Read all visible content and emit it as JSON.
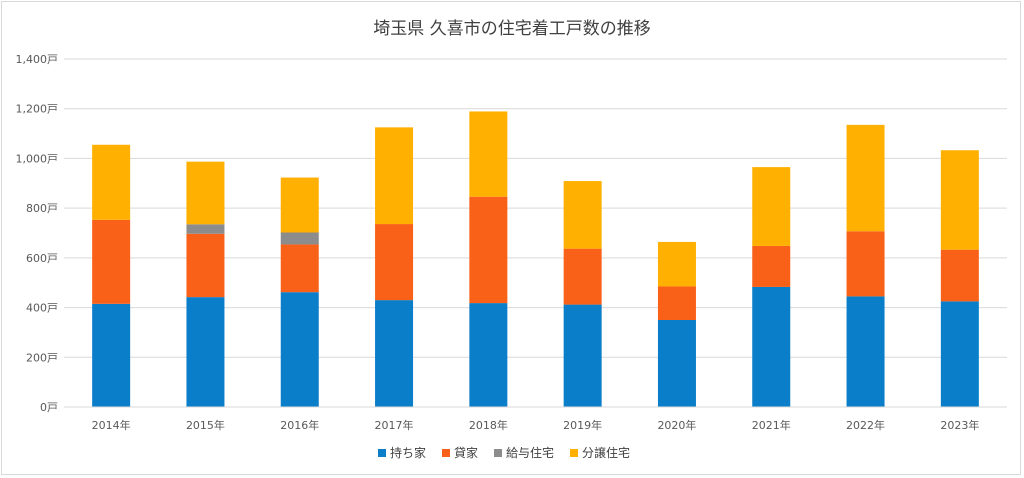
{
  "chart_data": {
    "type": "bar",
    "stacked": true,
    "title": "埼玉県 久喜市の住宅着工戸数の推移",
    "categories": [
      "2014年",
      "2015年",
      "2016年",
      "2017年",
      "2018年",
      "2019年",
      "2020年",
      "2021年",
      "2022年",
      "2023年"
    ],
    "series": [
      {
        "name": "持ち家",
        "color": "#0a7ec8",
        "values": [
          415,
          442,
          462,
          430,
          418,
          412,
          350,
          483,
          445,
          425
        ]
      },
      {
        "name": "貸家",
        "color": "#fa6118",
        "values": [
          338,
          255,
          192,
          306,
          428,
          225,
          135,
          165,
          262,
          208
        ]
      },
      {
        "name": "給与住宅",
        "color": "#8c8c8c",
        "values": [
          0,
          38,
          48,
          0,
          0,
          0,
          0,
          0,
          0,
          0
        ]
      },
      {
        "name": "分譲住宅",
        "color": "#ffb000",
        "values": [
          302,
          252,
          221,
          389,
          343,
          272,
          179,
          317,
          428,
          400
        ]
      }
    ],
    "y_ticks": [
      "0戸",
      "200戸",
      "400戸",
      "600戸",
      "800戸",
      "1,000戸",
      "1,200戸",
      "1,400戸"
    ],
    "ylim": [
      0,
      1400
    ],
    "grid": true,
    "legend_position": "bottom"
  }
}
